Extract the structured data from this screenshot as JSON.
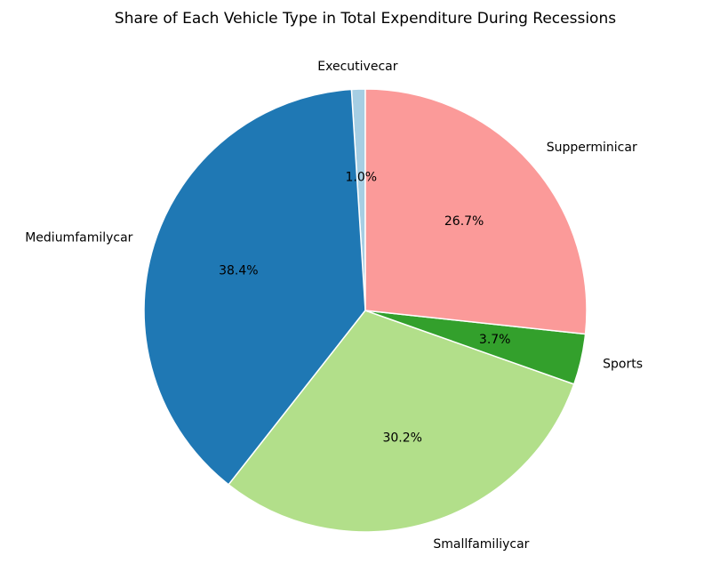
{
  "chart_data": {
    "type": "pie",
    "title": "Share of Each Vehicle Type in Total Expenditure During Recessions",
    "start_angle_deg": 90,
    "direction": "counterclockwise",
    "slices": [
      {
        "label": "Executivecar",
        "value": 1.0,
        "pct_label": "1.0%",
        "color": "#a6cee3"
      },
      {
        "label": "Mediumfamilycar",
        "value": 38.4,
        "pct_label": "38.4%",
        "color": "#1f78b4"
      },
      {
        "label": "Smallfamiliycar",
        "value": 30.2,
        "pct_label": "30.2%",
        "color": "#b2df8a"
      },
      {
        "label": "Sports",
        "value": 3.7,
        "pct_label": "3.7%",
        "color": "#33a02c"
      },
      {
        "label": "Supperminicar",
        "value": 26.7,
        "pct_label": "26.7%",
        "color": "#fb9a99"
      }
    ],
    "edge_color": "#ffffff"
  }
}
